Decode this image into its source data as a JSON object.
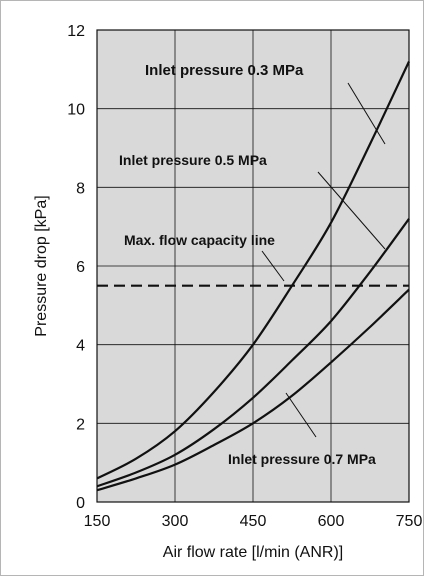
{
  "chart_data": {
    "type": "line",
    "xlabel": "Air flow rate [l/min (ANR)]",
    "ylabel": "Pressure drop [kPa]",
    "xlim": [
      150,
      750
    ],
    "ylim": [
      0,
      12
    ],
    "xticks": [
      "150",
      "300",
      "450",
      "600",
      "750"
    ],
    "yticks": [
      "0",
      "2",
      "4",
      "6",
      "8",
      "10",
      "12"
    ],
    "grid": true,
    "background_color": "#d9d9d9",
    "line_color": "#111111",
    "series": [
      {
        "name": "Inlet pressure 0.3 MPa",
        "x": [
          150,
          225,
          300,
          375,
          450,
          525,
          600,
          675,
          750
        ],
        "y": [
          0.6,
          1.1,
          1.8,
          2.8,
          4.0,
          5.5,
          7.1,
          9.1,
          11.2
        ]
      },
      {
        "name": "Inlet pressure 0.5 MPa",
        "x": [
          150,
          225,
          300,
          375,
          450,
          525,
          600,
          675,
          750
        ],
        "y": [
          0.4,
          0.75,
          1.2,
          1.85,
          2.65,
          3.6,
          4.6,
          5.85,
          7.2
        ]
      },
      {
        "name": "Inlet pressure 0.7 MPa",
        "x": [
          150,
          225,
          300,
          375,
          450,
          525,
          600,
          675,
          750
        ],
        "y": [
          0.3,
          0.6,
          0.95,
          1.45,
          2.0,
          2.7,
          3.55,
          4.45,
          5.4
        ]
      }
    ],
    "reference_lines": [
      {
        "name": "Max. flow capacity line",
        "y": 5.5,
        "style": "dashed"
      }
    ]
  }
}
